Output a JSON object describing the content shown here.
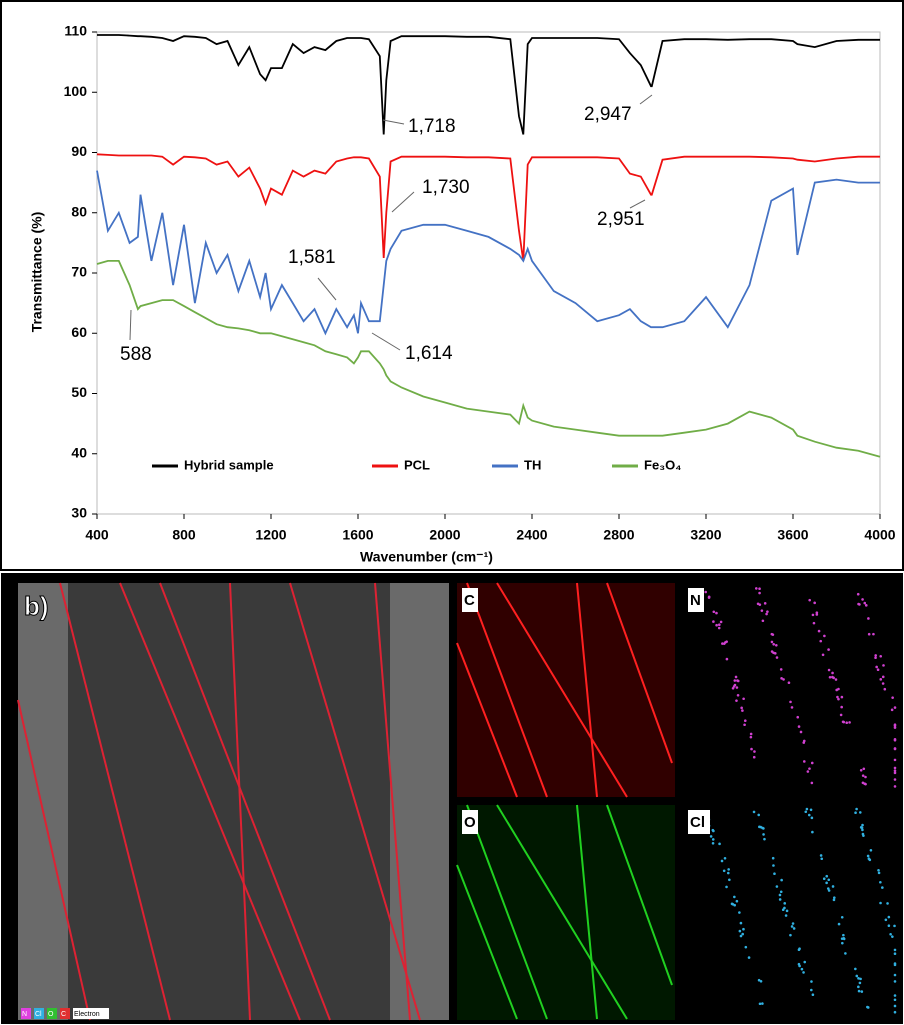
{
  "chart_data": {
    "type": "line",
    "xlabel": "Wavenumber (cm⁻¹)",
    "ylabel": "Transmittance (%)",
    "x": [
      400,
      450,
      500,
      550,
      588,
      600,
      650,
      700,
      750,
      800,
      850,
      900,
      950,
      1000,
      1050,
      1100,
      1150,
      1175,
      1200,
      1250,
      1300,
      1350,
      1400,
      1450,
      1500,
      1550,
      1581,
      1600,
      1614,
      1650,
      1700,
      1718,
      1730,
      1750,
      1800,
      1900,
      2000,
      2100,
      2200,
      2300,
      2340,
      2360,
      2380,
      2400,
      2500,
      2600,
      2700,
      2800,
      2850,
      2900,
      2947,
      2951,
      3000,
      3100,
      3200,
      3300,
      3400,
      3500,
      3600,
      3620,
      3700,
      3800,
      3900,
      4000
    ],
    "series": [
      {
        "name": "Hybrid sample",
        "color": "#000000",
        "values": [
          109.5,
          109.5,
          109.5,
          109.4,
          109.3,
          109.3,
          109.2,
          109,
          108.5,
          109.3,
          109.2,
          109,
          108,
          108.5,
          104.5,
          107.5,
          103,
          102,
          104,
          104,
          108,
          106.5,
          107.5,
          107,
          108.5,
          109,
          109,
          109,
          109,
          108.8,
          106,
          93,
          102,
          108.5,
          109.3,
          109.3,
          109.3,
          109.2,
          109.2,
          108.8,
          96,
          93,
          108,
          109,
          109,
          109,
          109,
          108.8,
          106.5,
          104.5,
          101,
          101,
          108.5,
          108.8,
          108.8,
          108.7,
          108.8,
          108.8,
          108.5,
          108,
          107.5,
          108.5,
          108.7,
          108.7
        ]
      },
      {
        "name": "PCL",
        "color": "#ee1111",
        "values": [
          89.7,
          89.6,
          89.5,
          89.5,
          89.5,
          89.5,
          89.5,
          89.3,
          88,
          89.3,
          89.2,
          89,
          88,
          88.5,
          86,
          87.5,
          84,
          81.5,
          84,
          83,
          87,
          86,
          87,
          86.5,
          88.5,
          89,
          89.2,
          89.2,
          89.2,
          89,
          86,
          72.5,
          80,
          88.5,
          89.3,
          89.3,
          89.3,
          89.2,
          89.2,
          89,
          77,
          72,
          88,
          89.2,
          89.2,
          89.2,
          89.2,
          89,
          86.5,
          86,
          83,
          83,
          88.8,
          89.3,
          89.3,
          89.3,
          89.3,
          89.2,
          89,
          88.8,
          88.5,
          89,
          89.3,
          89.3
        ]
      },
      {
        "name": "TH",
        "color": "#4472c4",
        "values": [
          87,
          77,
          80,
          75,
          76,
          83,
          72,
          80,
          68,
          78,
          65,
          75,
          70,
          73,
          67,
          72,
          66,
          70,
          64,
          68,
          65,
          62,
          64,
          60,
          64,
          61,
          63,
          60,
          65,
          62,
          62,
          68,
          72,
          74,
          77,
          78,
          78,
          77,
          76,
          74,
          73,
          72,
          74,
          72,
          67,
          65,
          62,
          63,
          64,
          62,
          61,
          61,
          61,
          62,
          66,
          61,
          68,
          82,
          84,
          73,
          85,
          85.5,
          85,
          85
        ]
      },
      {
        "name": "Fe₃O₄",
        "color": "#70ad47",
        "values": [
          71.5,
          72,
          72,
          68,
          64,
          64.5,
          65,
          65.5,
          65.5,
          64.5,
          63.5,
          62.5,
          61.5,
          61,
          60.8,
          60.5,
          60,
          60,
          60,
          59.5,
          59,
          58.5,
          58,
          57,
          56.5,
          56,
          55,
          56,
          57,
          57,
          55,
          54,
          53,
          52,
          51,
          49.5,
          48.5,
          47.5,
          47,
          46.5,
          45,
          48,
          46,
          45.5,
          44.5,
          44,
          43.5,
          43,
          43,
          43,
          43,
          43,
          43,
          43.5,
          44,
          45,
          47,
          46,
          44,
          43,
          42,
          41,
          40.5,
          39.5
        ]
      }
    ],
    "xlim": [
      400,
      4000
    ],
    "xticks": [
      400,
      800,
      1200,
      1600,
      2000,
      2400,
      2800,
      3200,
      3600,
      4000
    ],
    "ylim": [
      30,
      110
    ],
    "yticks": [
      30,
      40,
      50,
      60,
      70,
      80,
      90,
      100,
      110
    ],
    "grid": false,
    "legend": "bottom",
    "annotations": [
      "1,718",
      "2,947",
      "1,730",
      "2,951",
      "1,581",
      "1,614",
      "588"
    ]
  },
  "images": {
    "panel_label": "b)",
    "maps": [
      "C",
      "N",
      "O",
      "Cl"
    ],
    "legend": [
      "N",
      "Cl",
      "O",
      "C",
      "Electron"
    ]
  }
}
